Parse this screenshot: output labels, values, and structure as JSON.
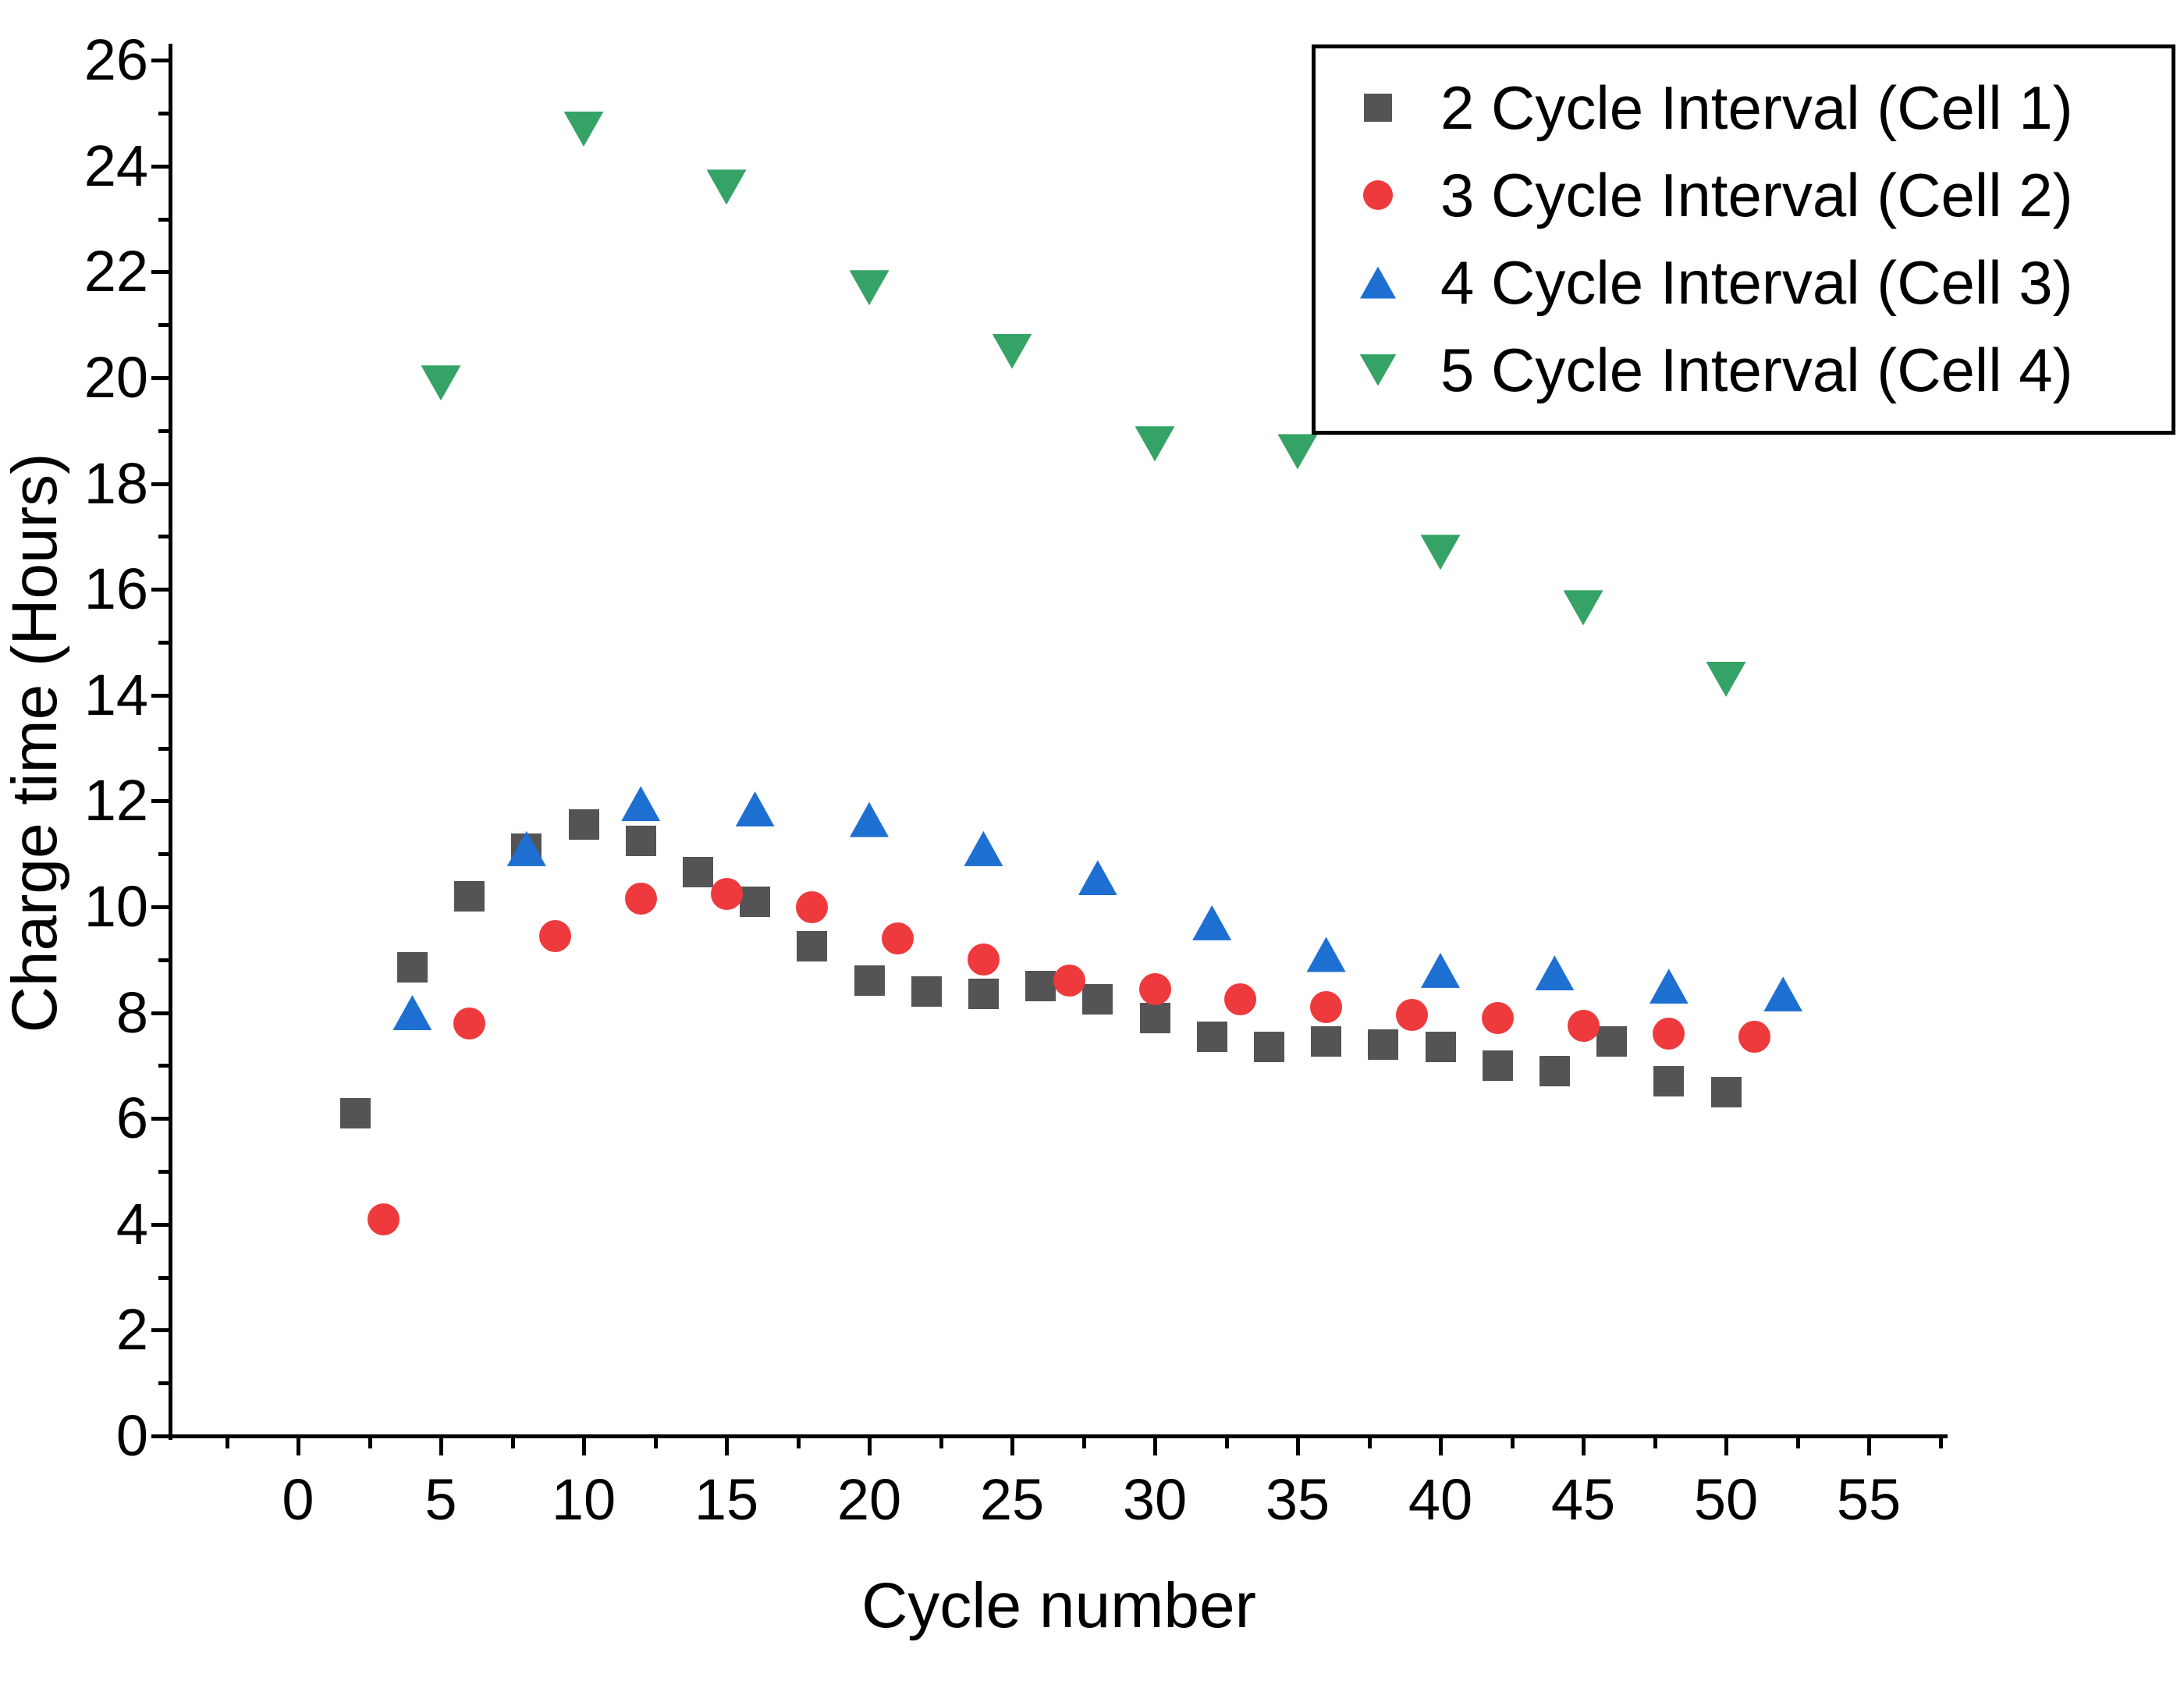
{
  "chart_data": {
    "type": "scatter",
    "title": "",
    "xlabel": "Cycle number",
    "ylabel": "Charge time (Hours)",
    "xlim": [
      -4.5,
      57.8
    ],
    "ylim": [
      0,
      26.3
    ],
    "grid": "off",
    "legend_position": "top-right",
    "x_major_ticks": [
      0,
      5,
      10,
      15,
      20,
      25,
      30,
      35,
      40,
      45,
      50,
      55
    ],
    "x_tick_labels": [
      "0",
      "5",
      "10",
      "15",
      "20",
      "25",
      "30",
      "35",
      "40",
      "45",
      "50",
      "55"
    ],
    "x_minor_ticks": [
      -2.5,
      2.5,
      7.5,
      12.5,
      17.5,
      22.5,
      27.5,
      32.5,
      37.5,
      42.5,
      47.5,
      52.5,
      57.5
    ],
    "y_major_ticks": [
      0,
      2,
      4,
      6,
      8,
      10,
      12,
      14,
      16,
      18,
      20,
      22,
      24,
      26
    ],
    "y_tick_labels": [
      "0",
      "2",
      "4",
      "6",
      "8",
      "10",
      "12",
      "14",
      "16",
      "18",
      "20",
      "22",
      "24",
      "26"
    ],
    "y_minor_ticks": [
      1,
      3,
      5,
      7,
      9,
      11,
      13,
      15,
      17,
      19,
      21,
      23,
      25
    ],
    "series": [
      {
        "name": "2 Cycle Interval (Cell 1)",
        "marker": "square",
        "color": "#545456",
        "points": [
          [
            2,
            6.1
          ],
          [
            4,
            8.85
          ],
          [
            6,
            10.2
          ],
          [
            8,
            11.1
          ],
          [
            10,
            11.55
          ],
          [
            12,
            11.25
          ],
          [
            14,
            10.65
          ],
          [
            16,
            10.1
          ],
          [
            18,
            9.25
          ],
          [
            20,
            8.6
          ],
          [
            22,
            8.4
          ],
          [
            24,
            8.35
          ],
          [
            26,
            8.5
          ],
          [
            28,
            8.25
          ],
          [
            30,
            7.9
          ],
          [
            32,
            7.55
          ],
          [
            34,
            7.35
          ],
          [
            36,
            7.45
          ],
          [
            38,
            7.4
          ],
          [
            40,
            7.35
          ],
          [
            42,
            7.0
          ],
          [
            44,
            6.9
          ],
          [
            46,
            7.45
          ],
          [
            48,
            6.7
          ],
          [
            50,
            6.5
          ]
        ]
      },
      {
        "name": "3 Cycle Interval (Cell 2)",
        "marker": "circle",
        "color": "#ee3a3c",
        "points": [
          [
            3,
            4.1
          ],
          [
            6,
            7.8
          ],
          [
            9,
            9.45
          ],
          [
            12,
            10.15
          ],
          [
            15,
            10.25
          ],
          [
            18,
            10.0
          ],
          [
            21,
            9.4
          ],
          [
            24,
            9.0
          ],
          [
            27,
            8.6
          ],
          [
            30,
            8.45
          ],
          [
            33,
            8.25
          ],
          [
            36,
            8.1
          ],
          [
            39,
            7.95
          ],
          [
            42,
            7.9
          ],
          [
            45,
            7.75
          ],
          [
            48,
            7.6
          ],
          [
            51,
            7.55
          ]
        ]
      },
      {
        "name": "4 Cycle Interval (Cell 3)",
        "marker": "triangle-up",
        "color": "#1e6fd2",
        "points": [
          [
            4,
            8.0
          ],
          [
            8,
            11.1
          ],
          [
            12,
            11.95
          ],
          [
            16,
            11.85
          ],
          [
            20,
            11.65
          ],
          [
            24,
            11.1
          ],
          [
            28,
            10.55
          ],
          [
            32,
            9.7
          ],
          [
            36,
            9.1
          ],
          [
            40,
            8.8
          ],
          [
            44,
            8.75
          ],
          [
            48,
            8.5
          ],
          [
            52,
            8.35
          ]
        ]
      },
      {
        "name": "5 Cycle Interval (Cell 4)",
        "marker": "triangle-down",
        "color": "#35a266",
        "points": [
          [
            5,
            19.9
          ],
          [
            10,
            24.7
          ],
          [
            15,
            23.6
          ],
          [
            20,
            21.7
          ],
          [
            25,
            20.5
          ],
          [
            30,
            18.75
          ],
          [
            35,
            18.6
          ],
          [
            40,
            16.7
          ],
          [
            45,
            15.65
          ],
          [
            50,
            14.3
          ]
        ]
      }
    ]
  }
}
